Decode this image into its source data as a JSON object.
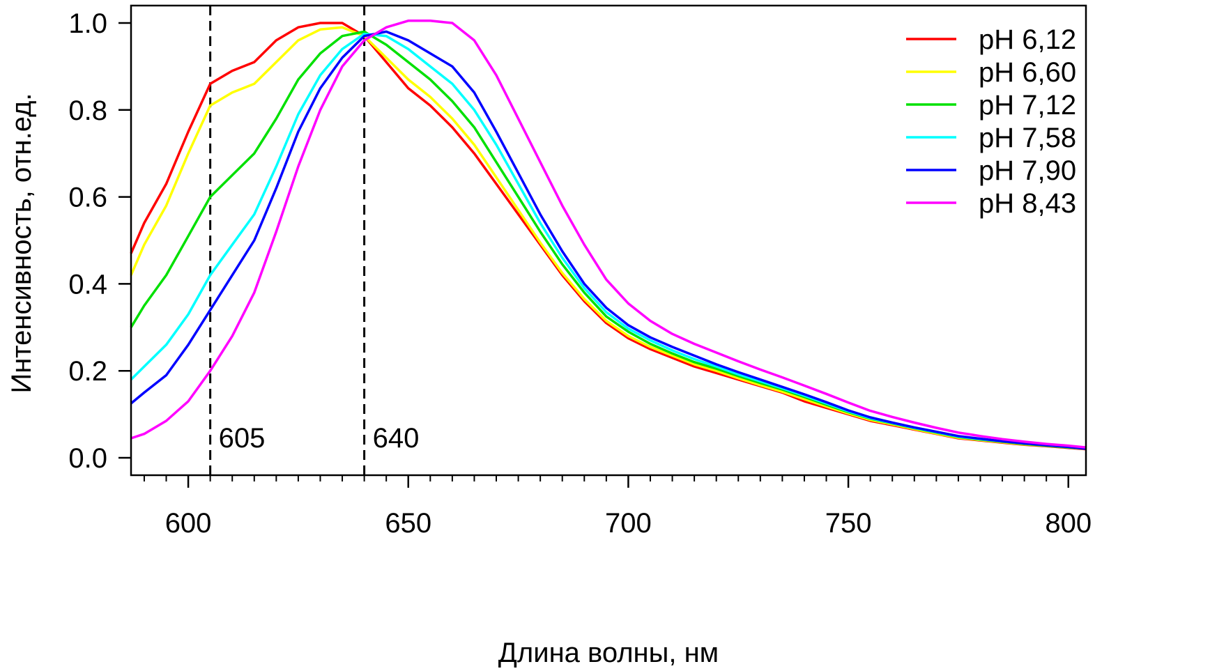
{
  "chart_data": {
    "type": "line",
    "xlabel": "Длина волны, нм",
    "ylabel": "Интенсивность, отн.ед.",
    "xlim": [
      587,
      804
    ],
    "ylim": [
      -0.04,
      1.04
    ],
    "xticks": [
      600,
      650,
      700,
      750,
      800
    ],
    "xtick_labels": [
      "600",
      "650",
      "700",
      "750",
      "800"
    ],
    "x_minor_step": 5,
    "yticks": [
      0.0,
      0.2,
      0.4,
      0.6,
      0.8,
      1.0
    ],
    "ytick_labels": [
      "0.0",
      "0.2",
      "0.4",
      "0.6",
      "0.8",
      "1.0"
    ],
    "grid": false,
    "legend_position": "top-right",
    "vlines": [
      {
        "x": 605,
        "label": "605",
        "style": "dashed"
      },
      {
        "x": 640,
        "label": "640",
        "style": "dashed"
      }
    ],
    "series": [
      {
        "name": "pH 6,12",
        "color": "#ff0000",
        "x": [
          587,
          590,
          595,
          600,
          605,
          610,
          615,
          620,
          625,
          630,
          635,
          640,
          645,
          650,
          655,
          660,
          665,
          670,
          675,
          680,
          685,
          690,
          695,
          700,
          705,
          710,
          715,
          720,
          725,
          730,
          735,
          740,
          745,
          750,
          755,
          760,
          765,
          770,
          775,
          780,
          785,
          790,
          795,
          800,
          804
        ],
        "y": [
          0.47,
          0.54,
          0.63,
          0.75,
          0.86,
          0.89,
          0.91,
          0.96,
          0.99,
          1.0,
          1.0,
          0.97,
          0.91,
          0.85,
          0.81,
          0.76,
          0.7,
          0.63,
          0.56,
          0.49,
          0.42,
          0.36,
          0.31,
          0.275,
          0.25,
          0.23,
          0.21,
          0.195,
          0.18,
          0.165,
          0.15,
          0.13,
          0.115,
          0.1,
          0.085,
          0.075,
          0.065,
          0.055,
          0.045,
          0.04,
          0.035,
          0.03,
          0.027,
          0.023,
          0.02
        ]
      },
      {
        "name": "pH 6,60",
        "color": "#ffff00",
        "x": [
          587,
          590,
          595,
          600,
          605,
          610,
          615,
          620,
          625,
          630,
          635,
          640,
          645,
          650,
          655,
          660,
          665,
          670,
          675,
          680,
          685,
          690,
          695,
          700,
          705,
          710,
          715,
          720,
          725,
          730,
          735,
          740,
          745,
          750,
          755,
          760,
          765,
          770,
          775,
          780,
          785,
          790,
          795,
          800,
          804
        ],
        "y": [
          0.42,
          0.49,
          0.58,
          0.7,
          0.81,
          0.84,
          0.86,
          0.91,
          0.96,
          0.985,
          0.99,
          0.97,
          0.92,
          0.87,
          0.83,
          0.78,
          0.72,
          0.645,
          0.57,
          0.495,
          0.425,
          0.365,
          0.315,
          0.28,
          0.255,
          0.235,
          0.215,
          0.2,
          0.183,
          0.167,
          0.152,
          0.135,
          0.118,
          0.102,
          0.087,
          0.077,
          0.066,
          0.056,
          0.046,
          0.041,
          0.036,
          0.031,
          0.028,
          0.024,
          0.021
        ]
      },
      {
        "name": "pH 7,12",
        "color": "#00e000",
        "x": [
          587,
          590,
          595,
          600,
          605,
          610,
          615,
          620,
          625,
          630,
          635,
          640,
          645,
          650,
          655,
          660,
          665,
          670,
          675,
          680,
          685,
          690,
          695,
          700,
          705,
          710,
          715,
          720,
          725,
          730,
          735,
          740,
          745,
          750,
          755,
          760,
          765,
          770,
          775,
          780,
          785,
          790,
          795,
          800,
          804
        ],
        "y": [
          0.3,
          0.35,
          0.42,
          0.51,
          0.6,
          0.65,
          0.7,
          0.78,
          0.87,
          0.93,
          0.97,
          0.98,
          0.95,
          0.91,
          0.87,
          0.82,
          0.76,
          0.68,
          0.6,
          0.52,
          0.445,
          0.38,
          0.325,
          0.29,
          0.262,
          0.24,
          0.22,
          0.205,
          0.188,
          0.172,
          0.157,
          0.14,
          0.122,
          0.105,
          0.09,
          0.079,
          0.068,
          0.058,
          0.048,
          0.042,
          0.037,
          0.032,
          0.028,
          0.024,
          0.021
        ]
      },
      {
        "name": "pH 7,58",
        "color": "#00ffff",
        "x": [
          587,
          590,
          595,
          600,
          605,
          610,
          615,
          620,
          625,
          630,
          635,
          640,
          645,
          650,
          655,
          660,
          665,
          670,
          675,
          680,
          685,
          690,
          695,
          700,
          705,
          710,
          715,
          720,
          725,
          730,
          735,
          740,
          745,
          750,
          755,
          760,
          765,
          770,
          775,
          780,
          785,
          790,
          795,
          800,
          804
        ],
        "y": [
          0.18,
          0.21,
          0.26,
          0.33,
          0.42,
          0.49,
          0.56,
          0.67,
          0.79,
          0.88,
          0.94,
          0.975,
          0.97,
          0.94,
          0.9,
          0.86,
          0.8,
          0.72,
          0.63,
          0.54,
          0.46,
          0.39,
          0.335,
          0.297,
          0.27,
          0.247,
          0.227,
          0.21,
          0.192,
          0.176,
          0.16,
          0.143,
          0.125,
          0.107,
          0.091,
          0.08,
          0.069,
          0.059,
          0.049,
          0.043,
          0.038,
          0.033,
          0.029,
          0.025,
          0.021
        ]
      },
      {
        "name": "pH 7,90",
        "color": "#0000ff",
        "x": [
          587,
          590,
          595,
          600,
          605,
          610,
          615,
          620,
          625,
          630,
          635,
          640,
          645,
          650,
          655,
          660,
          665,
          670,
          675,
          680,
          685,
          690,
          695,
          700,
          705,
          710,
          715,
          720,
          725,
          730,
          735,
          740,
          745,
          750,
          755,
          760,
          765,
          770,
          775,
          780,
          785,
          790,
          795,
          800,
          804
        ],
        "y": [
          0.125,
          0.15,
          0.19,
          0.26,
          0.34,
          0.42,
          0.5,
          0.62,
          0.75,
          0.85,
          0.92,
          0.97,
          0.98,
          0.96,
          0.93,
          0.9,
          0.84,
          0.75,
          0.655,
          0.56,
          0.475,
          0.4,
          0.345,
          0.305,
          0.277,
          0.255,
          0.235,
          0.215,
          0.197,
          0.18,
          0.163,
          0.146,
          0.128,
          0.109,
          0.093,
          0.081,
          0.07,
          0.06,
          0.05,
          0.044,
          0.038,
          0.033,
          0.029,
          0.025,
          0.021
        ]
      },
      {
        "name": "pH 8,43",
        "color": "#ff00ff",
        "x": [
          587,
          590,
          595,
          600,
          605,
          610,
          615,
          620,
          625,
          630,
          635,
          640,
          645,
          650,
          655,
          660,
          665,
          670,
          675,
          680,
          685,
          690,
          695,
          700,
          705,
          710,
          715,
          720,
          725,
          730,
          735,
          740,
          745,
          750,
          755,
          760,
          765,
          770,
          775,
          780,
          785,
          790,
          795,
          800,
          804
        ],
        "y": [
          0.045,
          0.055,
          0.085,
          0.13,
          0.2,
          0.28,
          0.38,
          0.52,
          0.67,
          0.8,
          0.9,
          0.96,
          0.99,
          1.005,
          1.005,
          1.0,
          0.96,
          0.88,
          0.78,
          0.68,
          0.58,
          0.49,
          0.41,
          0.355,
          0.315,
          0.285,
          0.262,
          0.242,
          0.222,
          0.203,
          0.185,
          0.166,
          0.147,
          0.127,
          0.108,
          0.094,
          0.081,
          0.069,
          0.058,
          0.05,
          0.043,
          0.037,
          0.032,
          0.028,
          0.024
        ]
      }
    ]
  }
}
